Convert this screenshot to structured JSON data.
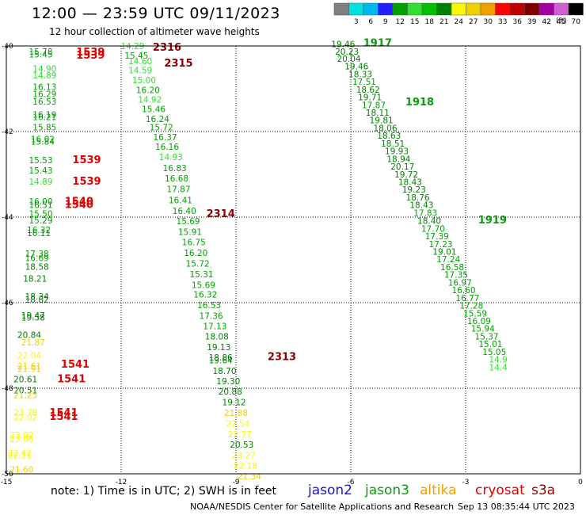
{
  "header": {
    "title": "12:00 — 23:59 UTC 09/11/2023",
    "subtitle": "12 hour collection of altimeter wave heights",
    "scale_unit": "(ft)"
  },
  "footer": {
    "note": "note:  1) Time is in UTC; 2) SWH is in feet",
    "credit": "NOAA/NESDIS Center for Satellite Applications and Research",
    "timestamp": "Sep 13 08:35:44 UTC 2023"
  },
  "satellites": [
    {
      "name": "jason2",
      "color": "#1414d8"
    },
    {
      "name": "jason3",
      "color": "#0a9a0a"
    },
    {
      "name": "altika",
      "color": "#f0a000"
    },
    {
      "name": "cryosat",
      "color": "#e00000"
    },
    {
      "name": "s3a",
      "color": "#8a0000"
    }
  ],
  "color_scale": [
    {
      "label": "",
      "color": "#7f7f7f"
    },
    {
      "label": "3",
      "color": "#00e0e0"
    },
    {
      "label": "6",
      "color": "#00b8f0"
    },
    {
      "label": "9",
      "color": "#2020ff"
    },
    {
      "label": "12",
      "color": "#00a000"
    },
    {
      "label": "15",
      "color": "#30e030"
    },
    {
      "label": "18",
      "color": "#00c000"
    },
    {
      "label": "21",
      "color": "#008000"
    },
    {
      "label": "24",
      "color": "#f8f800"
    },
    {
      "label": "27",
      "color": "#f0d000"
    },
    {
      "label": "30",
      "color": "#f0a000"
    },
    {
      "label": "33",
      "color": "#ff0000"
    },
    {
      "label": "36",
      "color": "#c00000"
    },
    {
      "label": "39",
      "color": "#800000"
    },
    {
      "label": "42",
      "color": "#a000a0"
    },
    {
      "label": "45",
      "color": "#d060d0"
    },
    {
      "label": "70",
      "color": "#000000"
    }
  ],
  "chart_data": {
    "type": "scatter",
    "xlabel": "",
    "ylabel": "",
    "xlim": [
      -15,
      0
    ],
    "ylim": [
      -50,
      -40
    ],
    "x_ticks": [
      -15,
      -12,
      -9,
      -6,
      -3,
      0
    ],
    "y_ticks": [
      -40,
      -42,
      -44,
      -46,
      -48,
      -50
    ],
    "grid": true,
    "tracks": [
      {
        "satellite": "cryosat",
        "color": "#e00000",
        "labels": [
          {
            "text": "1539",
            "x": -12.8,
            "y": -40.22
          },
          {
            "text": "1539",
            "x": -12.8,
            "y": -40.3
          },
          {
            "text": "1539",
            "x": -12.9,
            "y": -42.74
          },
          {
            "text": "1539",
            "x": -12.9,
            "y": -43.24
          },
          {
            "text": "1540",
            "x": -13.1,
            "y": -43.71
          },
          {
            "text": "1540",
            "x": -13.1,
            "y": -43.79
          },
          {
            "text": "1541",
            "x": -13.2,
            "y": -47.52
          },
          {
            "text": "1541",
            "x": -13.3,
            "y": -47.86
          },
          {
            "text": "1541",
            "x": -13.5,
            "y": -48.65
          },
          {
            "text": "1541",
            "x": -13.5,
            "y": -48.74
          }
        ]
      },
      {
        "satellite": "s3a",
        "color": "#8a0000",
        "labels": [
          {
            "text": "2316",
            "x": -10.8,
            "y": -40.11
          },
          {
            "text": "2315",
            "x": -10.5,
            "y": -40.48
          },
          {
            "text": "2314",
            "x": -9.4,
            "y": -44.0
          },
          {
            "text": "2313",
            "x": -7.8,
            "y": -47.34
          }
        ]
      },
      {
        "satellite": "jason3",
        "color": "#0a9a0a",
        "labels": [
          {
            "text": "1917",
            "x": -5.3,
            "y": -40.01
          },
          {
            "text": "1918",
            "x": -4.2,
            "y": -41.39
          },
          {
            "text": "1919",
            "x": -2.3,
            "y": -44.15
          }
        ]
      }
    ],
    "points": [
      {
        "v": "15.78",
        "x": -14.1,
        "y": -40.2,
        "c": "#00a000"
      },
      {
        "v": "15.45",
        "x": -14.1,
        "y": -40.27,
        "c": "#00a000"
      },
      {
        "v": "14.90",
        "x": -14.0,
        "y": -40.6,
        "c": "#30e030"
      },
      {
        "v": "14.89",
        "x": -14.0,
        "y": -40.76,
        "c": "#30e030"
      },
      {
        "v": "16.13",
        "x": -14.0,
        "y": -41.03,
        "c": "#00a000"
      },
      {
        "v": "16.29",
        "x": -14.0,
        "y": -41.19,
        "c": "#00a000"
      },
      {
        "v": "16.53",
        "x": -14.0,
        "y": -41.37,
        "c": "#00a000"
      },
      {
        "v": "16.19",
        "x": -14.0,
        "y": -41.68,
        "c": "#00a000"
      },
      {
        "v": "16.21",
        "x": -14.0,
        "y": -41.73,
        "c": "#00a000"
      },
      {
        "v": "15.85",
        "x": -14.0,
        "y": -41.97,
        "c": "#00a000"
      },
      {
        "v": "16.02",
        "x": -14.05,
        "y": -42.25,
        "c": "#00a000"
      },
      {
        "v": "15.84",
        "x": -14.05,
        "y": -42.31,
        "c": "#00a000"
      },
      {
        "v": "15.53",
        "x": -14.1,
        "y": -42.74,
        "c": "#00a000"
      },
      {
        "v": "15.43",
        "x": -14.1,
        "y": -42.98,
        "c": "#00a000"
      },
      {
        "v": "14.89",
        "x": -14.1,
        "y": -43.24,
        "c": "#30e030"
      },
      {
        "v": "16.00",
        "x": -14.1,
        "y": -43.7,
        "c": "#00a000"
      },
      {
        "v": "16.51",
        "x": -14.1,
        "y": -43.79,
        "c": "#00a000"
      },
      {
        "v": "15.50",
        "x": -14.1,
        "y": -43.99,
        "c": "#00a000"
      },
      {
        "v": "15.29",
        "x": -14.1,
        "y": -44.15,
        "c": "#00a000"
      },
      {
        "v": "16.32",
        "x": -14.15,
        "y": -44.37,
        "c": "#00a000"
      },
      {
        "v": "16.11",
        "x": -14.15,
        "y": -44.44,
        "c": "#00a000"
      },
      {
        "v": "17.38",
        "x": -14.2,
        "y": -44.93,
        "c": "#00a000"
      },
      {
        "v": "16.69",
        "x": -14.2,
        "y": -45.03,
        "c": "#00a000"
      },
      {
        "v": "18.58",
        "x": -14.2,
        "y": -45.23,
        "c": "#008000"
      },
      {
        "v": "18.21",
        "x": -14.25,
        "y": -45.51,
        "c": "#008000"
      },
      {
        "v": "18.34",
        "x": -14.2,
        "y": -45.93,
        "c": "#008000"
      },
      {
        "v": "18.82",
        "x": -14.2,
        "y": -46.0,
        "c": "#008000"
      },
      {
        "v": "19.47",
        "x": -14.3,
        "y": -46.37,
        "c": "#008000"
      },
      {
        "v": "19.58",
        "x": -14.3,
        "y": -46.42,
        "c": "#008000"
      },
      {
        "v": "20.84",
        "x": -14.4,
        "y": -46.82,
        "c": "#008000"
      },
      {
        "v": "21.87",
        "x": -14.3,
        "y": -47.0,
        "c": "#f0d000"
      },
      {
        "v": "22.04",
        "x": -14.4,
        "y": -47.31,
        "c": "#f8f800"
      },
      {
        "v": "21.61",
        "x": -14.4,
        "y": -47.56,
        "c": "#f0d000"
      },
      {
        "v": "21.91",
        "x": -14.4,
        "y": -47.62,
        "c": "#f0d000"
      },
      {
        "v": "20.61",
        "x": -14.5,
        "y": -47.86,
        "c": "#008000"
      },
      {
        "v": "20.51",
        "x": -14.5,
        "y": -48.12,
        "c": "#008000"
      },
      {
        "v": "21.25",
        "x": -14.5,
        "y": -48.23,
        "c": "#f0d000"
      },
      {
        "v": "23.78",
        "x": -14.5,
        "y": -48.64,
        "c": "#f8f800"
      },
      {
        "v": "22.02",
        "x": -14.5,
        "y": -48.75,
        "c": "#f8f800"
      },
      {
        "v": "23.02",
        "x": -14.6,
        "y": -49.17,
        "c": "#f8f800"
      },
      {
        "v": "23.08",
        "x": -14.6,
        "y": -49.26,
        "c": "#f8f800"
      },
      {
        "v": "22.42",
        "x": -14.65,
        "y": -49.58,
        "c": "#f8f800"
      },
      {
        "v": "22.11",
        "x": -14.65,
        "y": -49.64,
        "c": "#f8f800"
      },
      {
        "v": "21.60",
        "x": -14.6,
        "y": -49.97,
        "c": "#f0d000"
      },
      {
        "v": "14.29",
        "x": -11.7,
        "y": -40.07,
        "c": "#30e030"
      },
      {
        "v": "15.45",
        "x": -11.6,
        "y": -40.3,
        "c": "#00a000"
      },
      {
        "v": "14.60",
        "x": -11.5,
        "y": -40.43,
        "c": "#30e030"
      },
      {
        "v": "14.59",
        "x": -11.5,
        "y": -40.64,
        "c": "#30e030"
      },
      {
        "v": "15.00",
        "x": -11.4,
        "y": -40.87,
        "c": "#30e030"
      },
      {
        "v": "16.20",
        "x": -11.3,
        "y": -41.1,
        "c": "#00a000"
      },
      {
        "v": "14.92",
        "x": -11.25,
        "y": -41.32,
        "c": "#30e030"
      },
      {
        "v": "15.46",
        "x": -11.15,
        "y": -41.55,
        "c": "#00a000"
      },
      {
        "v": "16.24",
        "x": -11.05,
        "y": -41.78,
        "c": "#00a000"
      },
      {
        "v": "15.72",
        "x": -10.95,
        "y": -41.97,
        "c": "#00a000"
      },
      {
        "v": "16.37",
        "x": -10.85,
        "y": -42.2,
        "c": "#00a000"
      },
      {
        "v": "16.16",
        "x": -10.8,
        "y": -42.43,
        "c": "#00a000"
      },
      {
        "v": "14.93",
        "x": -10.7,
        "y": -42.67,
        "c": "#30e030"
      },
      {
        "v": "16.83",
        "x": -10.6,
        "y": -42.93,
        "c": "#00a000"
      },
      {
        "v": "16.68",
        "x": -10.55,
        "y": -43.17,
        "c": "#00a000"
      },
      {
        "v": "17.87",
        "x": -10.5,
        "y": -43.42,
        "c": "#00a000"
      },
      {
        "v": "16.41",
        "x": -10.45,
        "y": -43.68,
        "c": "#00a000"
      },
      {
        "v": "16.40",
        "x": -10.35,
        "y": -43.93,
        "c": "#00a000"
      },
      {
        "v": "15.69",
        "x": -10.25,
        "y": -44.17,
        "c": "#00a000"
      },
      {
        "v": "15.91",
        "x": -10.2,
        "y": -44.42,
        "c": "#00a000"
      },
      {
        "v": "16.75",
        "x": -10.1,
        "y": -44.66,
        "c": "#00a000"
      },
      {
        "v": "16.20",
        "x": -10.05,
        "y": -44.91,
        "c": "#00a000"
      },
      {
        "v": "15.72",
        "x": -10.0,
        "y": -45.16,
        "c": "#00a000"
      },
      {
        "v": "15.31",
        "x": -9.9,
        "y": -45.41,
        "c": "#00a000"
      },
      {
        "v": "15.69",
        "x": -9.85,
        "y": -45.66,
        "c": "#00a000"
      },
      {
        "v": "16.32",
        "x": -9.8,
        "y": -45.88,
        "c": "#00a000"
      },
      {
        "v": "16.53",
        "x": -9.7,
        "y": -46.13,
        "c": "#00a000"
      },
      {
        "v": "17.36",
        "x": -9.65,
        "y": -46.38,
        "c": "#00a000"
      },
      {
        "v": "17.13",
        "x": -9.55,
        "y": -46.62,
        "c": "#00a000"
      },
      {
        "v": "18.08",
        "x": -9.5,
        "y": -46.86,
        "c": "#008000"
      },
      {
        "v": "19.13",
        "x": -9.45,
        "y": -47.11,
        "c": "#008000"
      },
      {
        "v": "18.86",
        "x": -9.4,
        "y": -47.35,
        "c": "#008000"
      },
      {
        "v": "19.64",
        "x": -9.4,
        "y": -47.42,
        "c": "#008000"
      },
      {
        "v": "18.70",
        "x": -9.3,
        "y": -47.67,
        "c": "#008000"
      },
      {
        "v": "19.30",
        "x": -9.2,
        "y": -47.91,
        "c": "#008000"
      },
      {
        "v": "20.88",
        "x": -9.15,
        "y": -48.15,
        "c": "#008000"
      },
      {
        "v": "19.12",
        "x": -9.05,
        "y": -48.4,
        "c": "#008000"
      },
      {
        "v": "21.88",
        "x": -9.0,
        "y": -48.65,
        "c": "#f0d000"
      },
      {
        "v": "22.54",
        "x": -8.95,
        "y": -48.9,
        "c": "#f8f800"
      },
      {
        "v": "22.77",
        "x": -8.9,
        "y": -49.15,
        "c": "#f8f800"
      },
      {
        "v": "20.53",
        "x": -8.85,
        "y": -49.39,
        "c": "#008000"
      },
      {
        "v": "23.27",
        "x": -8.8,
        "y": -49.64,
        "c": "#f8f800"
      },
      {
        "v": "22.18",
        "x": -8.75,
        "y": -49.88,
        "c": "#f8f800"
      },
      {
        "v": "21.34",
        "x": -8.65,
        "y": -50.13,
        "c": "#f0d000"
      },
      {
        "v": "19.46",
        "x": -6.2,
        "y": -40.03,
        "c": "#008000"
      },
      {
        "v": "20.23",
        "x": -6.1,
        "y": -40.2,
        "c": "#008000"
      },
      {
        "v": "20.04",
        "x": -6.05,
        "y": -40.37,
        "c": "#008000"
      },
      {
        "v": "19.46",
        "x": -5.85,
        "y": -40.55,
        "c": "#008000"
      },
      {
        "v": "18.33",
        "x": -5.75,
        "y": -40.73,
        "c": "#008000"
      },
      {
        "v": "17.51",
        "x": -5.65,
        "y": -40.91,
        "c": "#00a000"
      },
      {
        "v": "18.62",
        "x": -5.55,
        "y": -41.09,
        "c": "#008000"
      },
      {
        "v": "19.71",
        "x": -5.5,
        "y": -41.27,
        "c": "#008000"
      },
      {
        "v": "17.87",
        "x": -5.4,
        "y": -41.45,
        "c": "#00a000"
      },
      {
        "v": "18.11",
        "x": -5.3,
        "y": -41.63,
        "c": "#008000"
      },
      {
        "v": "19.81",
        "x": -5.2,
        "y": -41.81,
        "c": "#008000"
      },
      {
        "v": "18.06",
        "x": -5.1,
        "y": -41.99,
        "c": "#008000"
      },
      {
        "v": "18.63",
        "x": -5.0,
        "y": -42.17,
        "c": "#008000"
      },
      {
        "v": "18.51",
        "x": -4.9,
        "y": -42.35,
        "c": "#008000"
      },
      {
        "v": "19.93",
        "x": -4.8,
        "y": -42.53,
        "c": "#008000"
      },
      {
        "v": "18.94",
        "x": -4.75,
        "y": -42.71,
        "c": "#008000"
      },
      {
        "v": "20.17",
        "x": -4.65,
        "y": -42.89,
        "c": "#008000"
      },
      {
        "v": "19.72",
        "x": -4.55,
        "y": -43.07,
        "c": "#008000"
      },
      {
        "v": "18.43",
        "x": -4.45,
        "y": -43.25,
        "c": "#008000"
      },
      {
        "v": "19.23",
        "x": -4.35,
        "y": -43.43,
        "c": "#008000"
      },
      {
        "v": "18.76",
        "x": -4.25,
        "y": -43.61,
        "c": "#008000"
      },
      {
        "v": "18.43",
        "x": -4.15,
        "y": -43.79,
        "c": "#008000"
      },
      {
        "v": "17.83",
        "x": -4.05,
        "y": -43.97,
        "c": "#00a000"
      },
      {
        "v": "18.40",
        "x": -3.95,
        "y": -44.16,
        "c": "#008000"
      },
      {
        "v": "17.70",
        "x": -3.85,
        "y": -44.34,
        "c": "#00a000"
      },
      {
        "v": "17.39",
        "x": -3.75,
        "y": -44.52,
        "c": "#00a000"
      },
      {
        "v": "17.23",
        "x": -3.65,
        "y": -44.7,
        "c": "#00a000"
      },
      {
        "v": "19.01",
        "x": -3.55,
        "y": -44.88,
        "c": "#008000"
      },
      {
        "v": "17.24",
        "x": -3.45,
        "y": -45.06,
        "c": "#00a000"
      },
      {
        "v": "16.58",
        "x": -3.35,
        "y": -45.24,
        "c": "#00a000"
      },
      {
        "v": "17.35",
        "x": -3.25,
        "y": -45.42,
        "c": "#00a000"
      },
      {
        "v": "16.97",
        "x": -3.15,
        "y": -45.6,
        "c": "#00a000"
      },
      {
        "v": "16.60",
        "x": -3.05,
        "y": -45.78,
        "c": "#00a000"
      },
      {
        "v": "16.77",
        "x": -2.95,
        "y": -45.96,
        "c": "#00a000"
      },
      {
        "v": "17.28",
        "x": -2.85,
        "y": -46.14,
        "c": "#00a000"
      },
      {
        "v": "15.59",
        "x": -2.75,
        "y": -46.32,
        "c": "#00a000"
      },
      {
        "v": "16.09",
        "x": -2.65,
        "y": -46.5,
        "c": "#00a000"
      },
      {
        "v": "15.94",
        "x": -2.55,
        "y": -46.68,
        "c": "#00a000"
      },
      {
        "v": "15.37",
        "x": -2.45,
        "y": -46.86,
        "c": "#00a000"
      },
      {
        "v": "15.01",
        "x": -2.35,
        "y": -47.04,
        "c": "#00a000"
      },
      {
        "v": "15.05",
        "x": -2.25,
        "y": -47.22,
        "c": "#00a000"
      },
      {
        "v": "14.9",
        "x": -2.15,
        "y": -47.4,
        "c": "#30e030"
      },
      {
        "v": "14.4",
        "x": -2.15,
        "y": -47.58,
        "c": "#30e030"
      }
    ]
  }
}
